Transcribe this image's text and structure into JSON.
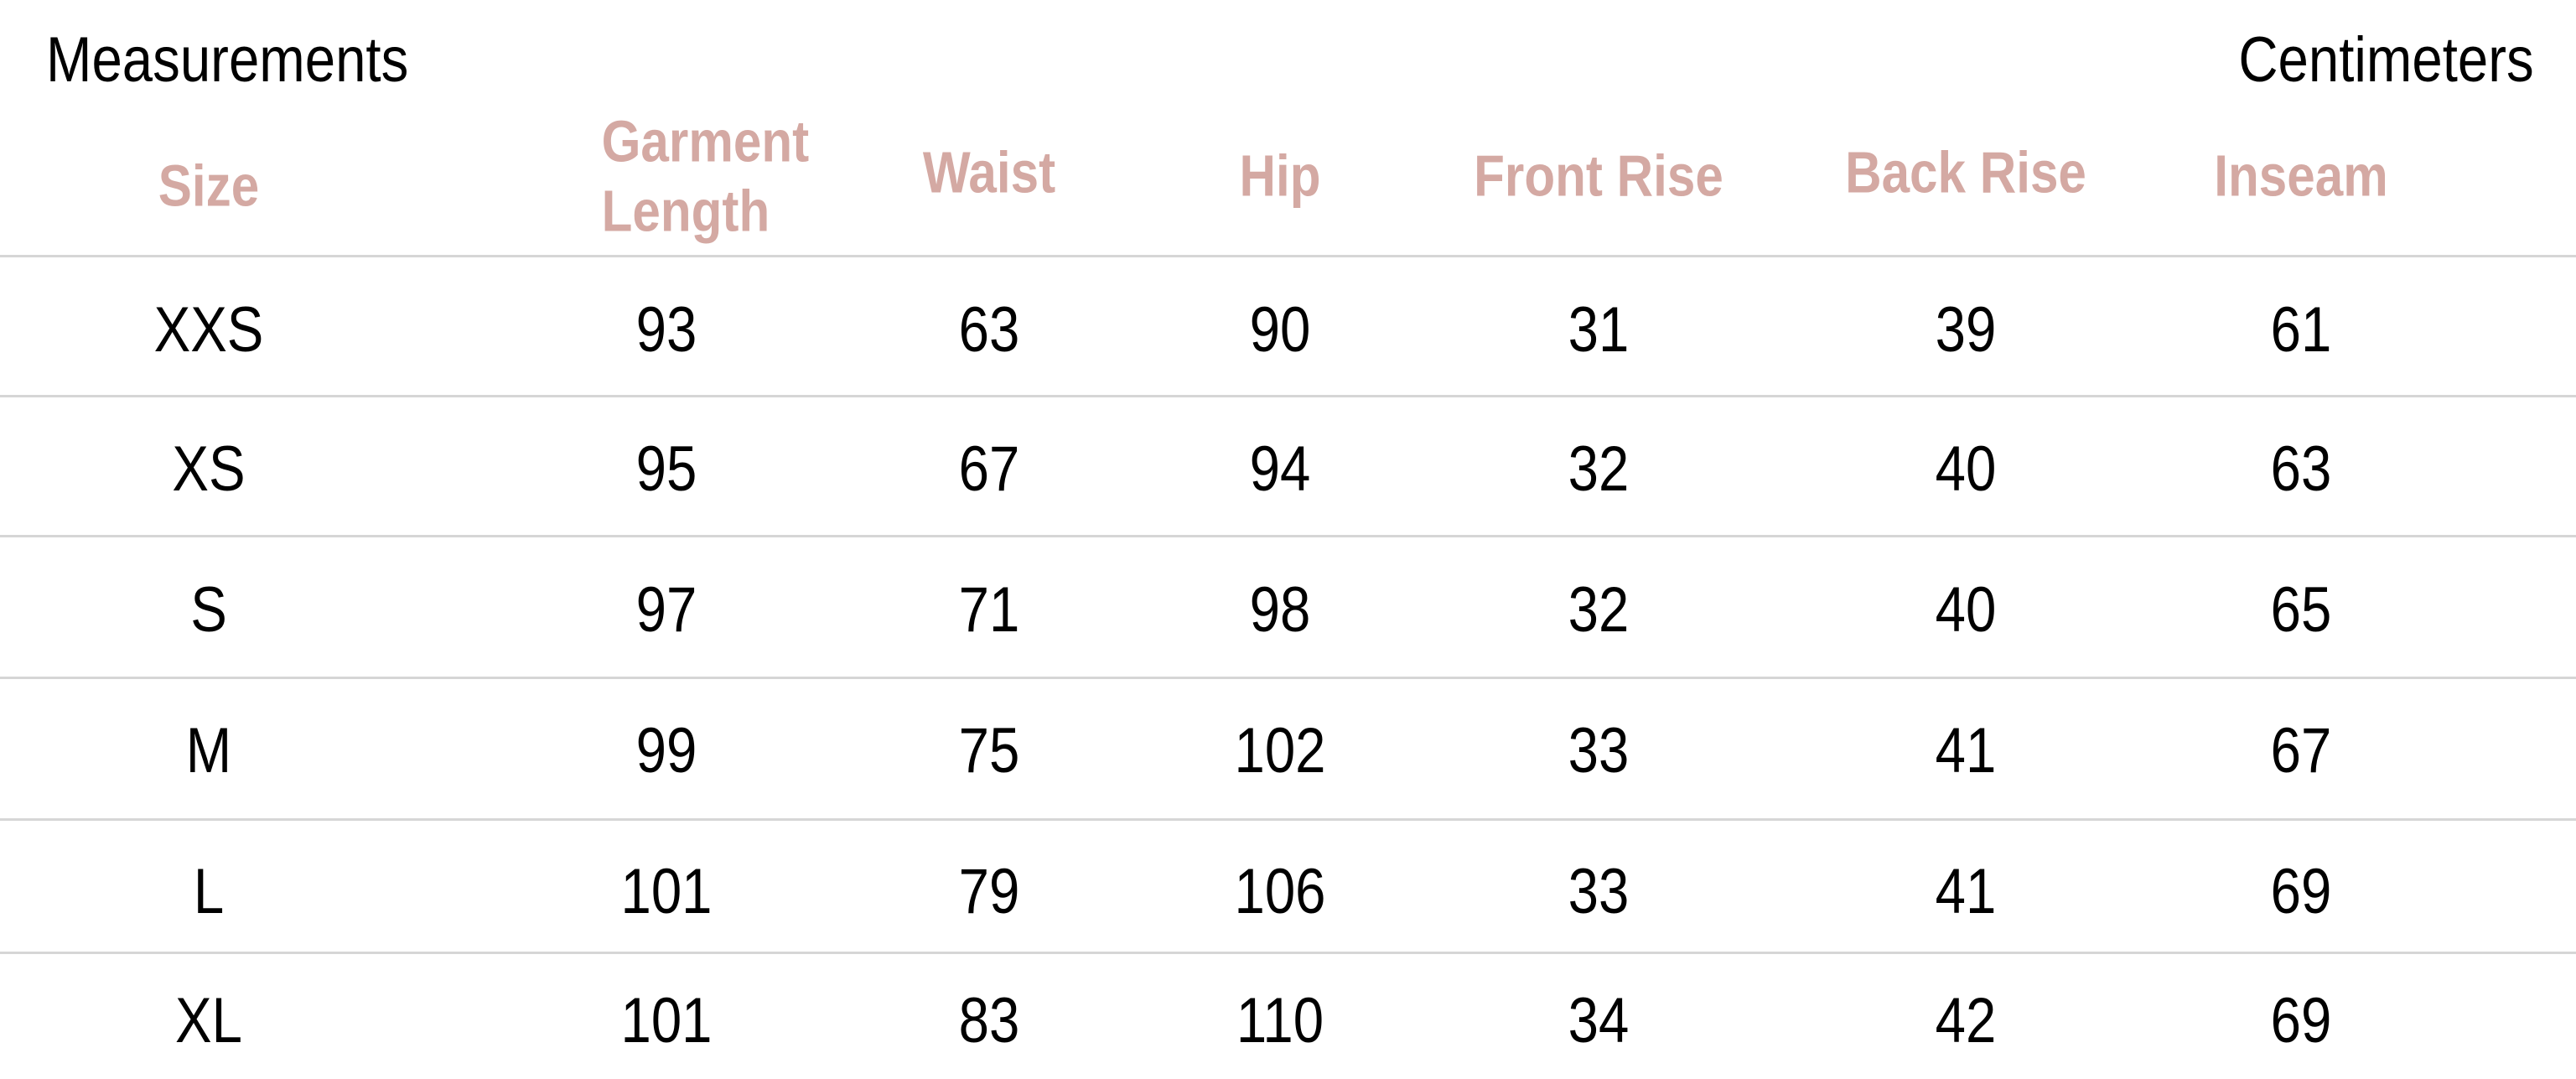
{
  "title": "Measurements",
  "unit": "Centimeters",
  "colors": {
    "header": "#d4a9a3",
    "text": "#000000",
    "rule": "#d6d6d6"
  },
  "columns": [
    "Size",
    "Garment Length",
    "Waist",
    "Hip",
    "Front Rise",
    "Back Rise",
    "Inseam"
  ],
  "rows": [
    [
      "XXS",
      "93",
      "63",
      "90",
      "31",
      "39",
      "61"
    ],
    [
      "XS",
      "95",
      "67",
      "94",
      "32",
      "40",
      "63"
    ],
    [
      "S",
      "97",
      "71",
      "98",
      "32",
      "40",
      "65"
    ],
    [
      "M",
      "99",
      "75",
      "102",
      "33",
      "41",
      "67"
    ],
    [
      "L",
      "101",
      "79",
      "106",
      "33",
      "41",
      "69"
    ],
    [
      "XL",
      "101",
      "83",
      "110",
      "34",
      "42",
      "69"
    ]
  ]
}
